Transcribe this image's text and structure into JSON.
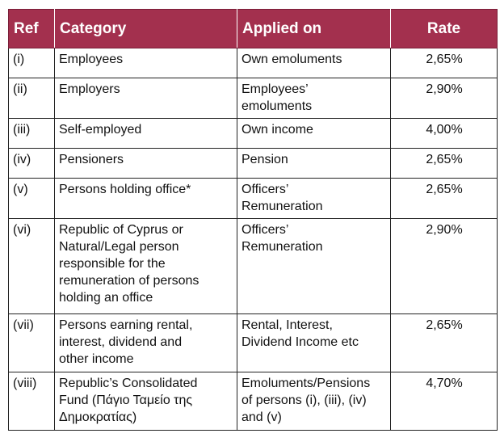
{
  "table": {
    "headers": {
      "ref": "Ref",
      "category": "Category",
      "applied_on": "Applied on",
      "rate": "Rate"
    },
    "rows": [
      {
        "ref": "(i)",
        "category": "Employees",
        "applied_on": "Own emoluments",
        "rate": "2,65%"
      },
      {
        "ref": "(ii)",
        "category": "Employers",
        "applied_on": "Employees’\nemoluments",
        "rate": "2,90%"
      },
      {
        "ref": "(iii)",
        "category": "Self-employed",
        "applied_on": "Own income",
        "rate": "4,00%"
      },
      {
        "ref": "(iv)",
        "category": "Pensioners",
        "applied_on": "Pension",
        "rate": "2,65%"
      },
      {
        "ref": "(v)",
        "category": "Persons holding office*",
        "applied_on": "Officers’\nRemuneration",
        "rate": "2,65%"
      },
      {
        "ref": "(vi)",
        "category": "Republic of Cyprus or\nNatural/Legal person\nresponsible for the\nremuneration of persons\nholding an office",
        "applied_on": "Officers’\nRemuneration",
        "rate": "2,90%"
      },
      {
        "ref": "(vii)",
        "category": "Persons earning rental,\ninterest, dividend and\nother income",
        "applied_on": "Rental, Interest,\nDividend Income etc",
        "rate": "2,65%"
      },
      {
        "ref": "(viii)",
        "category": "Republic’s Consolidated\nFund (Πάγιο Ταμείο της\nΔημοκρατίας)",
        "applied_on": "Emoluments/Pensions\nof persons (i), (iii), (iv)\nand (v)",
        "rate": "4,70%"
      }
    ]
  }
}
